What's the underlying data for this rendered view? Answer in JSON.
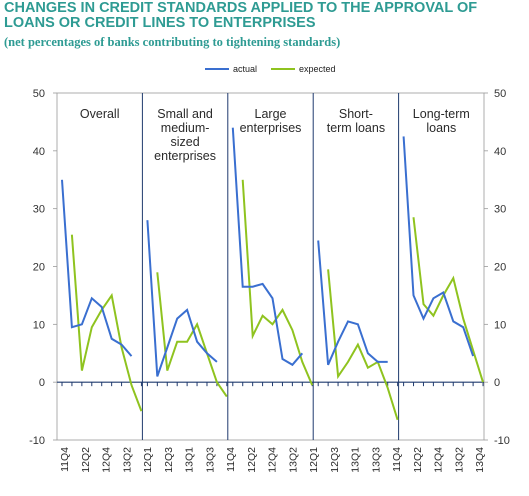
{
  "header": {
    "title_line1": "CHANGES IN CREDIT STANDARDS APPLIED TO THE APPROVAL OF",
    "title_line2": "LOANS OR CREDIT LINES TO ENTERPRISES",
    "subtitle": "(net percentages of banks contributing to tightening standards)"
  },
  "chart_data": {
    "type": "line",
    "ylim": [
      -10,
      50
    ],
    "yticks": [
      "50",
      "40",
      "30",
      "20",
      "10",
      "0",
      "-10"
    ],
    "legend": {
      "placement": "top-center",
      "entries": [
        "actual",
        "expected"
      ]
    },
    "colors": {
      "actual": "#3a6fd0",
      "expected": "#8fc31f",
      "axis": "#1f3a6e",
      "title": "#2e9b93"
    },
    "x_tick_labels": [
      "11Q4",
      "12Q2",
      "12Q4",
      "13Q2",
      "12Q1",
      "12Q3",
      "13Q1",
      "13Q3",
      "11Q4",
      "12Q2",
      "12Q4",
      "13Q2",
      "12Q1",
      "12Q3",
      "13Q1",
      "13Q3",
      "11Q4",
      "12Q2",
      "12Q4",
      "13Q2",
      "13Q4"
    ],
    "panels": [
      {
        "label_lines": [
          "Overall"
        ],
        "actual": [
          35,
          9.5,
          10,
          14.5,
          13,
          7.5,
          6.5,
          4.5
        ],
        "expected": [
          null,
          25.5,
          2,
          9.5,
          12.5,
          15,
          6,
          -0.5,
          -5
        ]
      },
      {
        "label_lines": [
          "Small and",
          "medium-",
          "sized",
          "enterprises"
        ],
        "actual": [
          28,
          1,
          6,
          11,
          12.5,
          7,
          5,
          3.5
        ],
        "expected": [
          null,
          19,
          2,
          7,
          7,
          10,
          5,
          0,
          -2.5
        ]
      },
      {
        "label_lines": [
          "Large",
          "enterprises"
        ],
        "actual": [
          44,
          16.5,
          16.5,
          17,
          14.5,
          4,
          3,
          5
        ],
        "expected": [
          null,
          35,
          8,
          11.5,
          10,
          12.5,
          9,
          3.5,
          -0.5
        ]
      },
      {
        "label_lines": [
          "Short-",
          "term loans"
        ],
        "actual": [
          24.5,
          3,
          7,
          10.5,
          10,
          5,
          3.5,
          3.5
        ],
        "expected": [
          null,
          19.5,
          1,
          3.5,
          6.5,
          2.5,
          3.5,
          -1,
          -6.5
        ]
      },
      {
        "label_lines": [
          "Long-term",
          "loans"
        ],
        "actual": [
          42.5,
          15,
          11,
          14.5,
          15.5,
          10.5,
          9.5,
          4.5
        ],
        "expected": [
          null,
          28.5,
          13.5,
          11.5,
          15,
          18,
          11,
          5.5,
          0
        ]
      }
    ]
  }
}
